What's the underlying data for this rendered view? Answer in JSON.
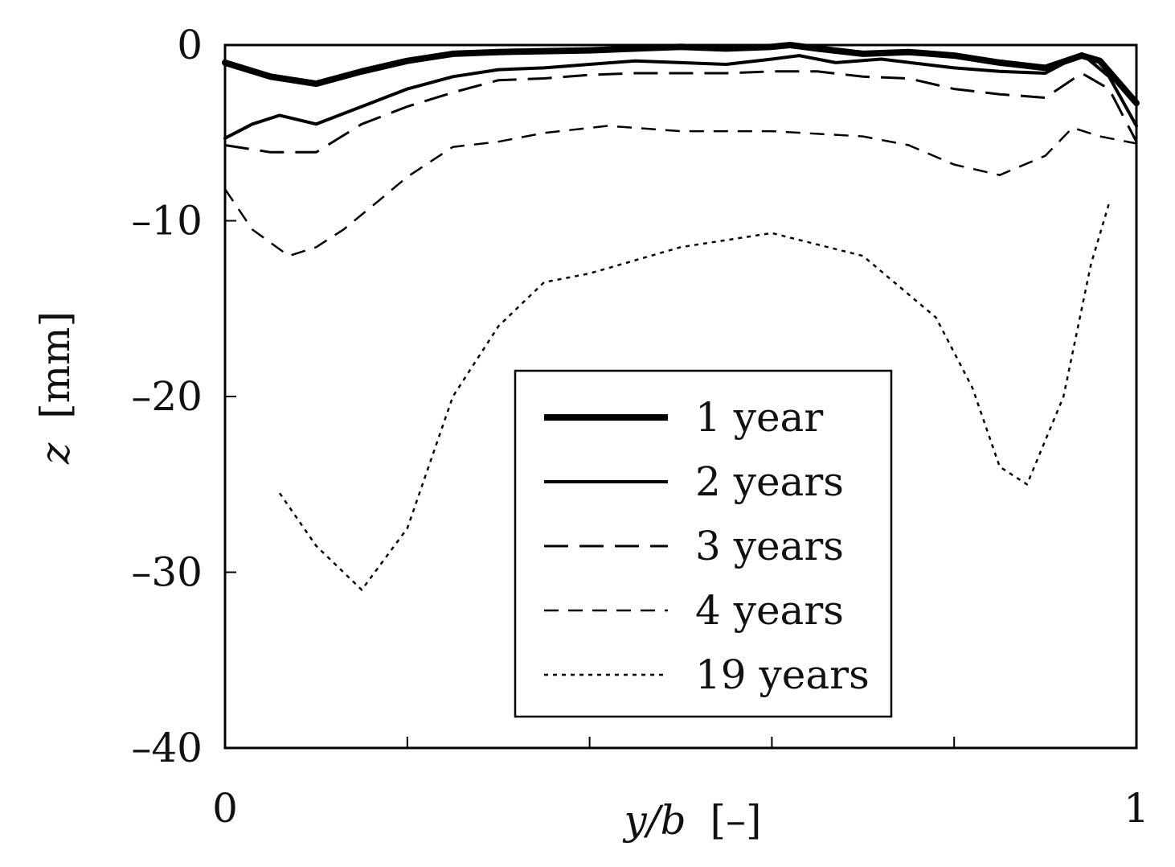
{
  "chart_data": {
    "type": "line",
    "xlabel_var": "y/b",
    "xlabel_unit": "[–]",
    "ylabel_var": "z",
    "ylabel_unit": "[mm]",
    "xlim": [
      0,
      1
    ],
    "ylim": [
      -40,
      0
    ],
    "xticks": [
      0,
      0.2,
      0.4,
      0.6,
      0.8,
      1
    ],
    "xtick_labels": [
      "0",
      "",
      "",
      "",
      "",
      "1"
    ],
    "yticks": [
      0,
      -10,
      -20,
      -30,
      -40
    ],
    "ytick_labels": [
      "0",
      "–10",
      "–20",
      "–30",
      "–40"
    ],
    "grid": false,
    "legend_position": "center",
    "series": [
      {
        "name": "1 year",
        "style": "thick-solid",
        "segments": [
          [
            [
              0,
              -1.0
            ],
            [
              0.05,
              -1.8
            ],
            [
              0.1,
              -2.2
            ],
            [
              0.15,
              -1.5
            ],
            [
              0.2,
              -0.9
            ],
            [
              0.25,
              -0.5
            ],
            [
              0.3,
              -0.4
            ],
            [
              0.4,
              -0.3
            ],
            [
              0.45,
              -0.2
            ],
            [
              0.5,
              -0.1
            ],
            [
              0.55,
              -0.2
            ],
            [
              0.6,
              -0.1
            ],
            [
              0.62,
              0.0
            ],
            [
              0.65,
              -0.2
            ],
            [
              0.7,
              -0.5
            ],
            [
              0.75,
              -0.4
            ],
            [
              0.8,
              -0.6
            ],
            [
              0.85,
              -1.0
            ],
            [
              0.9,
              -1.3
            ],
            [
              0.94,
              -0.6
            ],
            [
              0.96,
              -0.9
            ],
            [
              1.0,
              -3.3
            ]
          ]
        ]
      },
      {
        "name": "2 years",
        "style": "solid",
        "segments": [
          [
            [
              0,
              -5.3
            ],
            [
              0.03,
              -4.5
            ],
            [
              0.06,
              -4.0
            ],
            [
              0.1,
              -4.5
            ],
            [
              0.15,
              -3.5
            ],
            [
              0.2,
              -2.5
            ],
            [
              0.25,
              -1.8
            ],
            [
              0.3,
              -1.4
            ],
            [
              0.35,
              -1.3
            ],
            [
              0.4,
              -1.1
            ],
            [
              0.45,
              -0.9
            ],
            [
              0.5,
              -1.0
            ],
            [
              0.55,
              -1.1
            ],
            [
              0.6,
              -0.8
            ],
            [
              0.63,
              -0.6
            ],
            [
              0.67,
              -1.0
            ],
            [
              0.72,
              -0.8
            ],
            [
              0.8,
              -1.3
            ],
            [
              0.85,
              -1.5
            ],
            [
              0.9,
              -1.6
            ],
            [
              0.94,
              -0.5
            ],
            [
              0.97,
              -1.8
            ],
            [
              1.0,
              -4.6
            ]
          ]
        ]
      },
      {
        "name": "3 years",
        "style": "long-dash",
        "segments": [
          [
            [
              0,
              -5.7
            ],
            [
              0.05,
              -6.1
            ],
            [
              0.1,
              -6.1
            ],
            [
              0.15,
              -4.5
            ],
            [
              0.2,
              -3.5
            ],
            [
              0.25,
              -2.7
            ],
            [
              0.3,
              -2.0
            ],
            [
              0.35,
              -1.9
            ],
            [
              0.4,
              -1.7
            ],
            [
              0.45,
              -1.6
            ],
            [
              0.5,
              -1.6
            ],
            [
              0.55,
              -1.6
            ],
            [
              0.6,
              -1.5
            ],
            [
              0.65,
              -1.5
            ],
            [
              0.7,
              -1.8
            ],
            [
              0.75,
              -1.9
            ],
            [
              0.8,
              -2.5
            ],
            [
              0.85,
              -2.8
            ],
            [
              0.9,
              -3.0
            ],
            [
              0.94,
              -1.6
            ],
            [
              0.97,
              -2.5
            ],
            [
              1.0,
              -5.5
            ]
          ]
        ]
      },
      {
        "name": "4 years",
        "style": "short-dash",
        "segments": [
          [
            [
              0,
              -8.2
            ],
            [
              0.03,
              -10.5
            ],
            [
              0.07,
              -12.0
            ],
            [
              0.1,
              -11.5
            ],
            [
              0.13,
              -10.5
            ],
            [
              0.17,
              -8.8
            ],
            [
              0.2,
              -7.5
            ],
            [
              0.25,
              -5.8
            ],
            [
              0.3,
              -5.5
            ],
            [
              0.35,
              -5.0
            ],
            [
              0.42,
              -4.6
            ],
            [
              0.5,
              -4.9
            ],
            [
              0.6,
              -4.9
            ],
            [
              0.7,
              -5.2
            ],
            [
              0.75,
              -5.7
            ],
            [
              0.8,
              -6.8
            ],
            [
              0.85,
              -7.4
            ],
            [
              0.9,
              -6.3
            ],
            [
              0.93,
              -4.7
            ],
            [
              0.96,
              -5.2
            ],
            [
              1.0,
              -5.6
            ]
          ]
        ]
      },
      {
        "name": "19 years",
        "style": "dotted",
        "segments": [
          [
            [
              0.06,
              -25.5
            ],
            [
              0.1,
              -28.5
            ],
            [
              0.15,
              -31.0
            ],
            [
              0.2,
              -27.5
            ],
            [
              0.25,
              -20.0
            ],
            [
              0.3,
              -16.0
            ],
            [
              0.35,
              -13.5
            ],
            [
              0.4,
              -13.0
            ],
            [
              0.5,
              -11.5
            ],
            [
              0.6,
              -10.7
            ],
            [
              0.7,
              -12.0
            ],
            [
              0.78,
              -15.5
            ],
            [
              0.82,
              -19.5
            ],
            [
              0.85,
              -24.0
            ],
            [
              0.88,
              -25.0
            ],
            [
              0.92,
              -20.0
            ],
            [
              0.95,
              -12.5
            ],
            [
              0.97,
              -9.0
            ]
          ]
        ]
      }
    ]
  }
}
